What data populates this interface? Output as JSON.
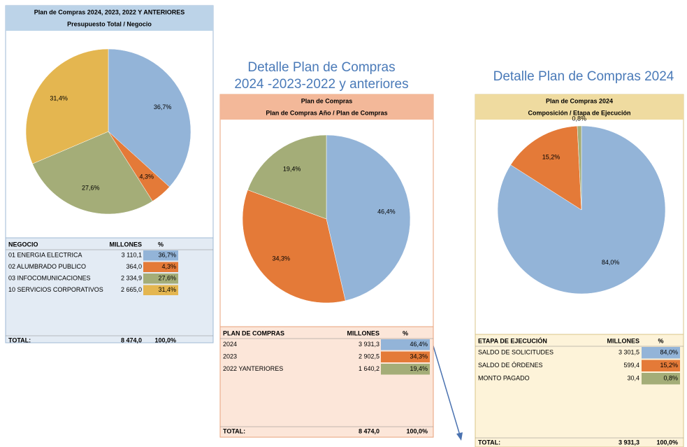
{
  "headings": [
    "Detalle Plan de Compras",
    "2024 -2023-2022 y anteriores",
    "Detalle Plan de Compras 2024"
  ],
  "chart_data": [
    {
      "type": "pie",
      "title": "Plan de Compras 2024, 2023, 2022 Y ANTERIORES",
      "subtitle": "Presupuesto Total / Negocio",
      "categories": [
        "01 ENERGIA ELECTRICA",
        "02 ALUMBRADO PUBLICO",
        "03 INFOCOMUNICACIONES",
        "10 SERVICIOS CORPORATIVOS"
      ],
      "values": [
        36.7,
        4.3,
        27.6,
        31.4
      ],
      "value_labels": [
        "36,7%",
        "4,3%",
        "27,6%",
        "31,4%"
      ],
      "colors": [
        "#93b4d8",
        "#e47a38",
        "#a4ad78",
        "#e4b650"
      ],
      "table": {
        "columns": [
          "NEGOCIO",
          "MILLONES",
          "%"
        ],
        "millions": [
          "3 110,1",
          "364,0",
          "2 334,9",
          "2 665,0"
        ],
        "total": [
          "TOTAL:",
          "8 474,0",
          "100,0%"
        ]
      }
    },
    {
      "type": "pie",
      "title": "Plan de Compras",
      "subtitle": "Plan de Compras Año / Plan de Compras",
      "categories": [
        "2024",
        "2023",
        "2022 YANTERIORES"
      ],
      "values": [
        46.4,
        34.3,
        19.4
      ],
      "value_labels": [
        "46,4%",
        "34,3%",
        "19,4%"
      ],
      "colors": [
        "#93b4d8",
        "#e47a38",
        "#a4ad78"
      ],
      "table": {
        "columns": [
          "PLAN DE COMPRAS",
          "MILLONES",
          "%"
        ],
        "millions": [
          "3 931,3",
          "2 902,5",
          "1 640,2"
        ],
        "total": [
          "TOTAL:",
          "8 474,0",
          "100,0%"
        ]
      }
    },
    {
      "type": "pie",
      "title": "Plan de Compras 2024",
      "subtitle": "Composición / Etapa de Ejecución",
      "categories": [
        "SALDO DE SOLICITUDES",
        "SALDO DE ÓRDENES",
        "MONTO PAGADO"
      ],
      "values": [
        84.0,
        15.2,
        0.8
      ],
      "value_labels": [
        "84,0%",
        "15,2%",
        "0,8%"
      ],
      "colors": [
        "#93b4d8",
        "#e47a38",
        "#a4ad78"
      ],
      "table": {
        "columns": [
          "ETAPA DE EJECUCIÓN",
          "MILLONES",
          "%"
        ],
        "millions": [
          "3 301,5",
          "599,4",
          "30,4"
        ],
        "total": [
          "TOTAL:",
          "3 931,3",
          "100,0%"
        ]
      }
    }
  ]
}
